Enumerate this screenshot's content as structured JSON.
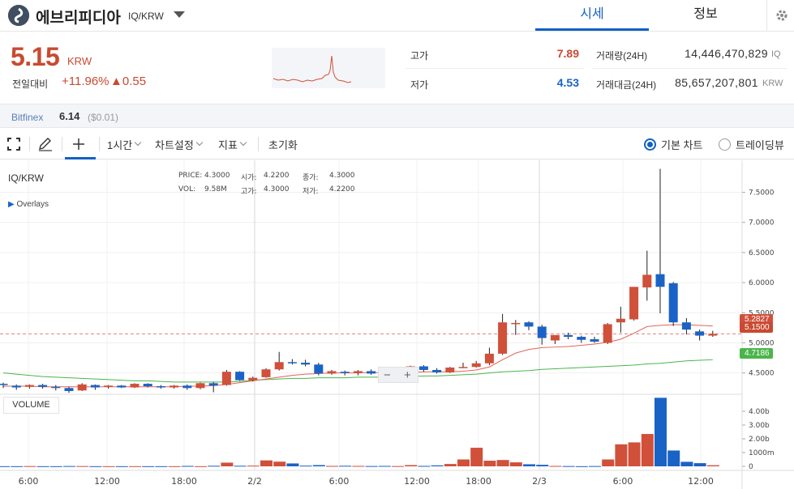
{
  "coin": {
    "name": "에브리피디아",
    "pair": "IQ/KRW"
  },
  "tabs": {
    "market": "시세",
    "info": "정보"
  },
  "price": {
    "current": "5.15",
    "unit": "KRW",
    "change_label": "전일대비",
    "change_rate": "+11.96%",
    "change_amount": "▲0.55"
  },
  "stats": {
    "high_label": "고가",
    "high": "7.89",
    "low_label": "저가",
    "low": "4.53",
    "volume_label": "거래량(24H)",
    "volume": "14,446,470,829",
    "volume_unit": "IQ",
    "value_label": "거래대금(24H)",
    "value": "85,657,207,801",
    "value_unit": "KRW"
  },
  "exchange": {
    "name": "Bitfinex",
    "price": "6.14",
    "diff": "($0.01)"
  },
  "toolbar": {
    "interval": "1시간",
    "settings": "차트설정",
    "indicators": "지표",
    "reset": "초기화",
    "basic_chart": "기본 차트",
    "tradingview": "트레이딩뷰"
  },
  "chart": {
    "symbol": "IQ/KRW",
    "overlays_label": "Overlays",
    "volume_label": "VOLUME",
    "ohlc": {
      "price_label": "PRICE:",
      "price": "4.3000",
      "open_label": "시가:",
      "open": "4.2200",
      "close_label": "종가:",
      "close": "4.3000",
      "vol_label": "VOL:",
      "vol": "9.58M",
      "high_label": "고가:",
      "high": "4.3000",
      "low_label": "저가:",
      "low": "4.2200"
    },
    "badges": {
      "ma_red": "5.2827",
      "current": "5.1500",
      "ma_green": "4.7186"
    }
  },
  "chart_data": {
    "type": "candlestick",
    "y_ticks": [
      "7.5000",
      "7.0000",
      "6.5000",
      "6.0000",
      "5.5000",
      "5.0000",
      "4.5000"
    ],
    "volume_ticks": [
      "4.00b",
      "3.00b",
      "2.00b",
      "1000m",
      "0"
    ],
    "x_ticks": [
      "6:00",
      "12:00",
      "18:00",
      "2/2",
      "6:00",
      "12:00",
      "18:00",
      "2/3",
      "6:00",
      "12:00"
    ],
    "ylim": [
      4.2,
      7.95
    ],
    "candles": [
      [
        4.32,
        4.34,
        4.25,
        4.3
      ],
      [
        4.29,
        4.31,
        4.22,
        4.26
      ],
      [
        4.27,
        4.31,
        4.24,
        4.3
      ],
      [
        4.3,
        4.32,
        4.24,
        4.27
      ],
      [
        4.27,
        4.3,
        4.21,
        4.25
      ],
      [
        4.25,
        4.27,
        4.17,
        4.2
      ],
      [
        4.21,
        4.33,
        4.2,
        4.31
      ],
      [
        4.3,
        4.31,
        4.22,
        4.26
      ],
      [
        4.27,
        4.3,
        4.24,
        4.29
      ],
      [
        4.29,
        4.3,
        4.25,
        4.26
      ],
      [
        4.26,
        4.33,
        4.25,
        4.32
      ],
      [
        4.32,
        4.33,
        4.26,
        4.28
      ],
      [
        4.28,
        4.3,
        4.24,
        4.26
      ],
      [
        4.26,
        4.3,
        4.24,
        4.29
      ],
      [
        4.29,
        4.31,
        4.22,
        4.25
      ],
      [
        4.25,
        4.34,
        4.23,
        4.33
      ],
      [
        4.33,
        4.35,
        4.18,
        4.29
      ],
      [
        4.3,
        4.55,
        4.29,
        4.52
      ],
      [
        4.52,
        4.53,
        4.37,
        4.38
      ],
      [
        4.38,
        4.44,
        4.36,
        4.42
      ],
      [
        4.43,
        4.58,
        4.42,
        4.56
      ],
      [
        4.56,
        4.85,
        4.54,
        4.68
      ],
      [
        4.68,
        4.73,
        4.64,
        4.67
      ],
      [
        4.67,
        4.72,
        4.61,
        4.64
      ],
      [
        4.64,
        4.67,
        4.46,
        4.49
      ],
      [
        4.49,
        4.55,
        4.47,
        4.53
      ],
      [
        4.52,
        4.54,
        4.46,
        4.5
      ],
      [
        4.5,
        4.55,
        4.46,
        4.53
      ],
      [
        4.53,
        4.56,
        4.47,
        4.49
      ],
      [
        4.49,
        4.52,
        4.42,
        4.46
      ],
      [
        4.47,
        4.52,
        4.46,
        4.5
      ],
      [
        4.5,
        4.62,
        4.49,
        4.61
      ],
      [
        4.61,
        4.63,
        4.52,
        4.55
      ],
      [
        4.55,
        4.58,
        4.49,
        4.51
      ],
      [
        4.51,
        4.6,
        4.5,
        4.59
      ],
      [
        4.59,
        4.67,
        4.58,
        4.6
      ],
      [
        4.6,
        4.7,
        4.59,
        4.66
      ],
      [
        4.66,
        4.92,
        4.63,
        4.82
      ],
      [
        4.82,
        5.48,
        4.8,
        5.34
      ],
      [
        5.33,
        5.38,
        5.13,
        5.33
      ],
      [
        5.34,
        5.36,
        5.21,
        5.27
      ],
      [
        5.27,
        5.3,
        4.97,
        5.08
      ],
      [
        5.04,
        5.12,
        4.98,
        5.13
      ],
      [
        5.13,
        5.17,
        5.06,
        5.1
      ],
      [
        5.1,
        5.12,
        5.0,
        5.05
      ],
      [
        5.06,
        5.1,
        5.0,
        5.02
      ],
      [
        5.0,
        5.33,
        4.98,
        5.31
      ],
      [
        5.34,
        5.6,
        5.17,
        5.4
      ],
      [
        5.39,
        5.92,
        5.37,
        5.93
      ],
      [
        5.92,
        6.53,
        5.7,
        6.13
      ],
      [
        6.14,
        7.89,
        5.49,
        5.93
      ],
      [
        5.99,
        6.01,
        5.28,
        5.34
      ],
      [
        5.34,
        5.41,
        5.14,
        5.22
      ],
      [
        5.19,
        5.22,
        5.04,
        5.12
      ],
      [
        5.12,
        5.2,
        5.1,
        5.15
      ]
    ],
    "volumes": [
      0.01,
      0.01,
      0.02,
      0.01,
      0.01,
      0.02,
      0.02,
      0.01,
      0.01,
      0.01,
      0.01,
      0.01,
      0.01,
      0.01,
      0.03,
      0.01,
      0.04,
      0.27,
      0.04,
      0.05,
      0.43,
      0.34,
      0.21,
      0.05,
      0.09,
      0.03,
      0.04,
      0.03,
      0.02,
      0.03,
      0.02,
      0.09,
      0.03,
      0.07,
      0.17,
      0.5,
      1.35,
      0.41,
      0.46,
      0.29,
      0.15,
      0.11,
      0.03,
      0.02,
      0.01,
      0.02,
      0.5,
      1.6,
      1.74,
      2.35,
      4.98,
      1.15,
      0.33,
      0.23,
      0.08
    ],
    "ma_red": [
      4.28,
      4.28,
      4.28,
      4.27,
      4.27,
      4.27,
      4.27,
      4.27,
      4.27,
      4.27,
      4.27,
      4.27,
      4.27,
      4.27,
      4.28,
      4.28,
      4.29,
      4.31,
      4.34,
      4.37,
      4.4,
      4.43,
      4.46,
      4.48,
      4.49,
      4.5,
      4.5,
      4.5,
      4.51,
      4.5,
      4.5,
      4.51,
      4.52,
      4.52,
      4.52,
      4.53,
      4.55,
      4.6,
      4.72,
      4.83,
      4.89,
      4.92,
      4.93,
      4.94,
      4.96,
      4.98,
      5.01,
      5.06,
      5.16,
      5.27,
      5.29,
      5.3,
      5.3,
      5.29,
      5.28
    ],
    "ma_green": [
      4.5,
      4.48,
      4.46,
      4.44,
      4.43,
      4.42,
      4.41,
      4.4,
      4.39,
      4.38,
      4.37,
      4.37,
      4.36,
      4.35,
      4.35,
      4.35,
      4.35,
      4.35,
      4.36,
      4.38,
      4.39,
      4.4,
      4.41,
      4.41,
      4.42,
      4.42,
      4.42,
      4.43,
      4.43,
      4.43,
      4.44,
      4.44,
      4.45,
      4.45,
      4.46,
      4.47,
      4.48,
      4.5,
      4.52,
      4.53,
      4.54,
      4.56,
      4.57,
      4.58,
      4.59,
      4.6,
      4.61,
      4.62,
      4.63,
      4.65,
      4.66,
      4.68,
      4.7,
      4.71,
      4.72
    ]
  },
  "colors": {
    "up": "#d0503a",
    "down": "#1a63c6",
    "accent": "#1261c4",
    "ma_red": "#e0645a",
    "ma_green": "#4bb54b"
  }
}
